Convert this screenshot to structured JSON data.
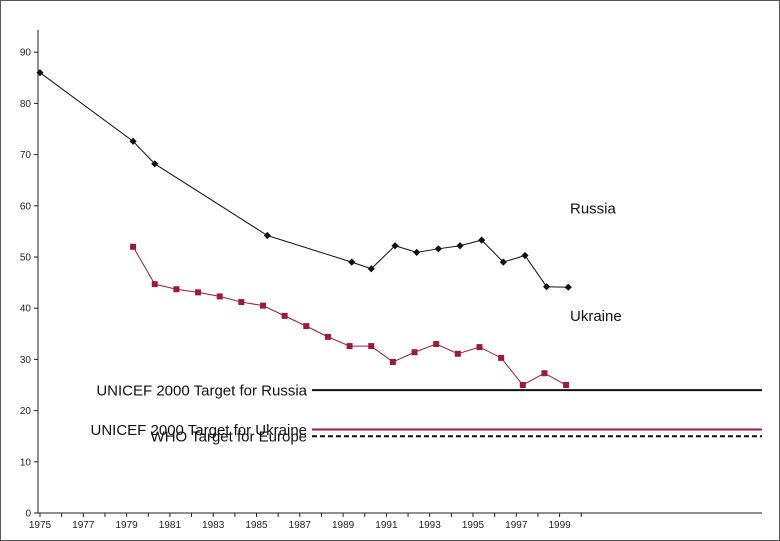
{
  "chart_data": {
    "type": "line",
    "ylim": [
      0,
      90
    ],
    "xlim": [
      1975,
      2000
    ],
    "y_ticks": [
      "0",
      "10",
      "20",
      "30",
      "40",
      "50",
      "60",
      "70",
      "80",
      "90"
    ],
    "x_ticks": [
      "1975",
      "1977",
      "1979",
      "1981",
      "1983",
      "1985",
      "1987",
      "1989",
      "1991",
      "1993",
      "1995",
      "1997",
      "1999"
    ],
    "grid": false,
    "series": [
      {
        "name": "Russia",
        "color": "#111111",
        "marker": "diamond",
        "points": [
          [
            1975,
            86
          ],
          [
            1979.3,
            72.6
          ],
          [
            1980.3,
            68.2
          ],
          [
            1985.5,
            54.2
          ],
          [
            1989.4,
            49.0
          ],
          [
            1990.3,
            47.7
          ],
          [
            1991.4,
            52.2
          ],
          [
            1992.4,
            50.9
          ],
          [
            1993.4,
            51.6
          ],
          [
            1994.4,
            52.2
          ],
          [
            1995.4,
            53.3
          ],
          [
            1996.4,
            49.0
          ],
          [
            1997.4,
            50.3
          ],
          [
            1998.4,
            44.2
          ],
          [
            1999.4,
            44.1
          ]
        ]
      },
      {
        "name": "Ukraine",
        "color": "#9b1b3a",
        "marker": "square",
        "points": [
          [
            1979.3,
            52.0
          ],
          [
            1980.3,
            44.7
          ],
          [
            1981.3,
            43.7
          ],
          [
            1982.3,
            43.1
          ],
          [
            1983.3,
            42.3
          ],
          [
            1984.3,
            41.2
          ],
          [
            1985.3,
            40.5
          ],
          [
            1986.3,
            38.5
          ],
          [
            1987.3,
            36.5
          ],
          [
            1988.3,
            34.4
          ],
          [
            1989.3,
            32.6
          ],
          [
            1990.3,
            32.6
          ],
          [
            1991.3,
            29.5
          ],
          [
            1992.3,
            31.4
          ],
          [
            1993.3,
            33.0
          ],
          [
            1994.3,
            31.1
          ],
          [
            1995.3,
            32.4
          ],
          [
            1996.3,
            30.3
          ],
          [
            1997.3,
            25.0
          ],
          [
            1998.3,
            27.3
          ],
          [
            1999.3,
            25.0
          ]
        ]
      }
    ],
    "reference_lines": [
      {
        "label": "UNICEF 2000 Target for Russia",
        "value": 24,
        "color": "#111111",
        "style": "solid"
      },
      {
        "label": "UNICEF 2000 Target for Ukraine",
        "value": 16.3,
        "color": "#9b1b3a",
        "style": "solid"
      },
      {
        "label": "WHO Target for Europe",
        "value": 15,
        "color": "#111111",
        "style": "dashed"
      }
    ]
  }
}
